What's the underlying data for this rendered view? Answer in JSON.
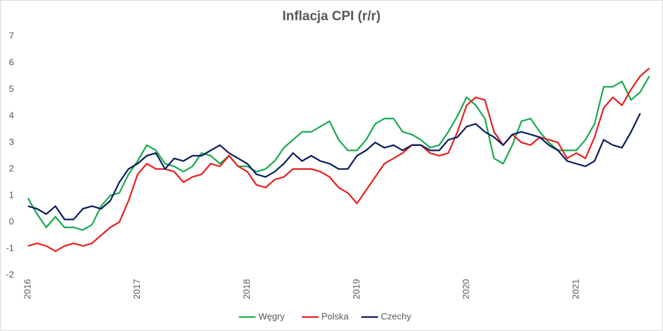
{
  "chart_data": {
    "type": "line",
    "title": "Inflacja CPI (r/r)",
    "categories": [
      "2016",
      null,
      null,
      null,
      null,
      null,
      null,
      null,
      null,
      null,
      null,
      null,
      "2017",
      null,
      null,
      null,
      null,
      null,
      null,
      null,
      null,
      null,
      null,
      null,
      "2018",
      null,
      null,
      null,
      null,
      null,
      null,
      null,
      null,
      null,
      null,
      null,
      "2019",
      null,
      null,
      null,
      null,
      null,
      null,
      null,
      null,
      null,
      null,
      null,
      "2020",
      null,
      null,
      null,
      null,
      null,
      null,
      null,
      null,
      null,
      null,
      null,
      "2021",
      null,
      null,
      null,
      null,
      null,
      null,
      null,
      null
    ],
    "series": [
      {
        "name": "Węgry",
        "color": "#1aaa50",
        "values": [
          0.9,
          0.3,
          -0.2,
          0.2,
          -0.2,
          -0.2,
          -0.3,
          -0.1,
          0.6,
          1.0,
          1.1,
          1.8,
          2.3,
          2.9,
          2.7,
          2.2,
          2.1,
          1.9,
          2.1,
          2.6,
          2.5,
          2.2,
          2.5,
          2.1,
          2.1,
          1.9,
          2.0,
          2.3,
          2.8,
          3.1,
          3.4,
          3.4,
          3.6,
          3.8,
          3.1,
          2.7,
          2.7,
          3.1,
          3.7,
          3.9,
          3.9,
          3.4,
          3.3,
          3.1,
          2.8,
          2.9,
          3.4,
          4.0,
          4.7,
          4.4,
          3.9,
          2.4,
          2.2,
          2.9,
          3.8,
          3.9,
          3.4,
          3.0,
          2.7,
          2.7,
          2.7,
          3.1,
          3.7,
          5.1,
          5.1,
          5.3,
          4.6,
          4.9,
          5.5
        ]
      },
      {
        "name": "Polska",
        "color": "#e82020",
        "values": [
          -0.9,
          -0.8,
          -0.9,
          -1.1,
          -0.9,
          -0.8,
          -0.9,
          -0.8,
          -0.5,
          -0.2,
          0.0,
          0.8,
          1.8,
          2.2,
          2.0,
          2.0,
          1.9,
          1.5,
          1.7,
          1.8,
          2.2,
          2.1,
          2.5,
          2.1,
          1.9,
          1.4,
          1.3,
          1.6,
          1.7,
          2.0,
          2.0,
          2.0,
          1.9,
          1.7,
          1.3,
          1.1,
          0.7,
          1.2,
          1.7,
          2.2,
          2.4,
          2.6,
          2.9,
          2.9,
          2.6,
          2.5,
          2.6,
          3.4,
          4.4,
          4.7,
          4.6,
          3.4,
          2.9,
          3.3,
          3.0,
          2.9,
          3.2,
          3.1,
          3.0,
          2.4,
          2.6,
          2.4,
          3.2,
          4.3,
          4.7,
          4.4,
          5.0,
          5.5,
          5.8
        ]
      },
      {
        "name": "Czechy",
        "color": "#0d1f5c",
        "values": [
          0.6,
          0.5,
          0.3,
          0.6,
          0.1,
          0.1,
          0.5,
          0.6,
          0.5,
          0.8,
          1.5,
          2.0,
          2.2,
          2.5,
          2.6,
          2.0,
          2.4,
          2.3,
          2.5,
          2.5,
          2.7,
          2.9,
          2.6,
          2.4,
          2.2,
          1.8,
          1.7,
          1.9,
          2.2,
          2.6,
          2.3,
          2.5,
          2.3,
          2.2,
          2.0,
          2.0,
          2.5,
          2.7,
          3.0,
          2.8,
          2.9,
          2.7,
          2.9,
          2.9,
          2.7,
          2.7,
          3.1,
          3.2,
          3.6,
          3.7,
          3.4,
          3.2,
          2.9,
          3.3,
          3.4,
          3.3,
          3.2,
          2.9,
          2.7,
          2.3,
          2.2,
          2.1,
          2.3,
          3.1,
          2.9,
          2.8,
          3.4,
          4.1,
          null
        ]
      }
    ],
    "ylim": [
      -2,
      7
    ],
    "yticks": [
      -2,
      -1,
      0,
      1,
      2,
      3,
      4,
      5,
      6,
      7
    ],
    "grid": false
  }
}
